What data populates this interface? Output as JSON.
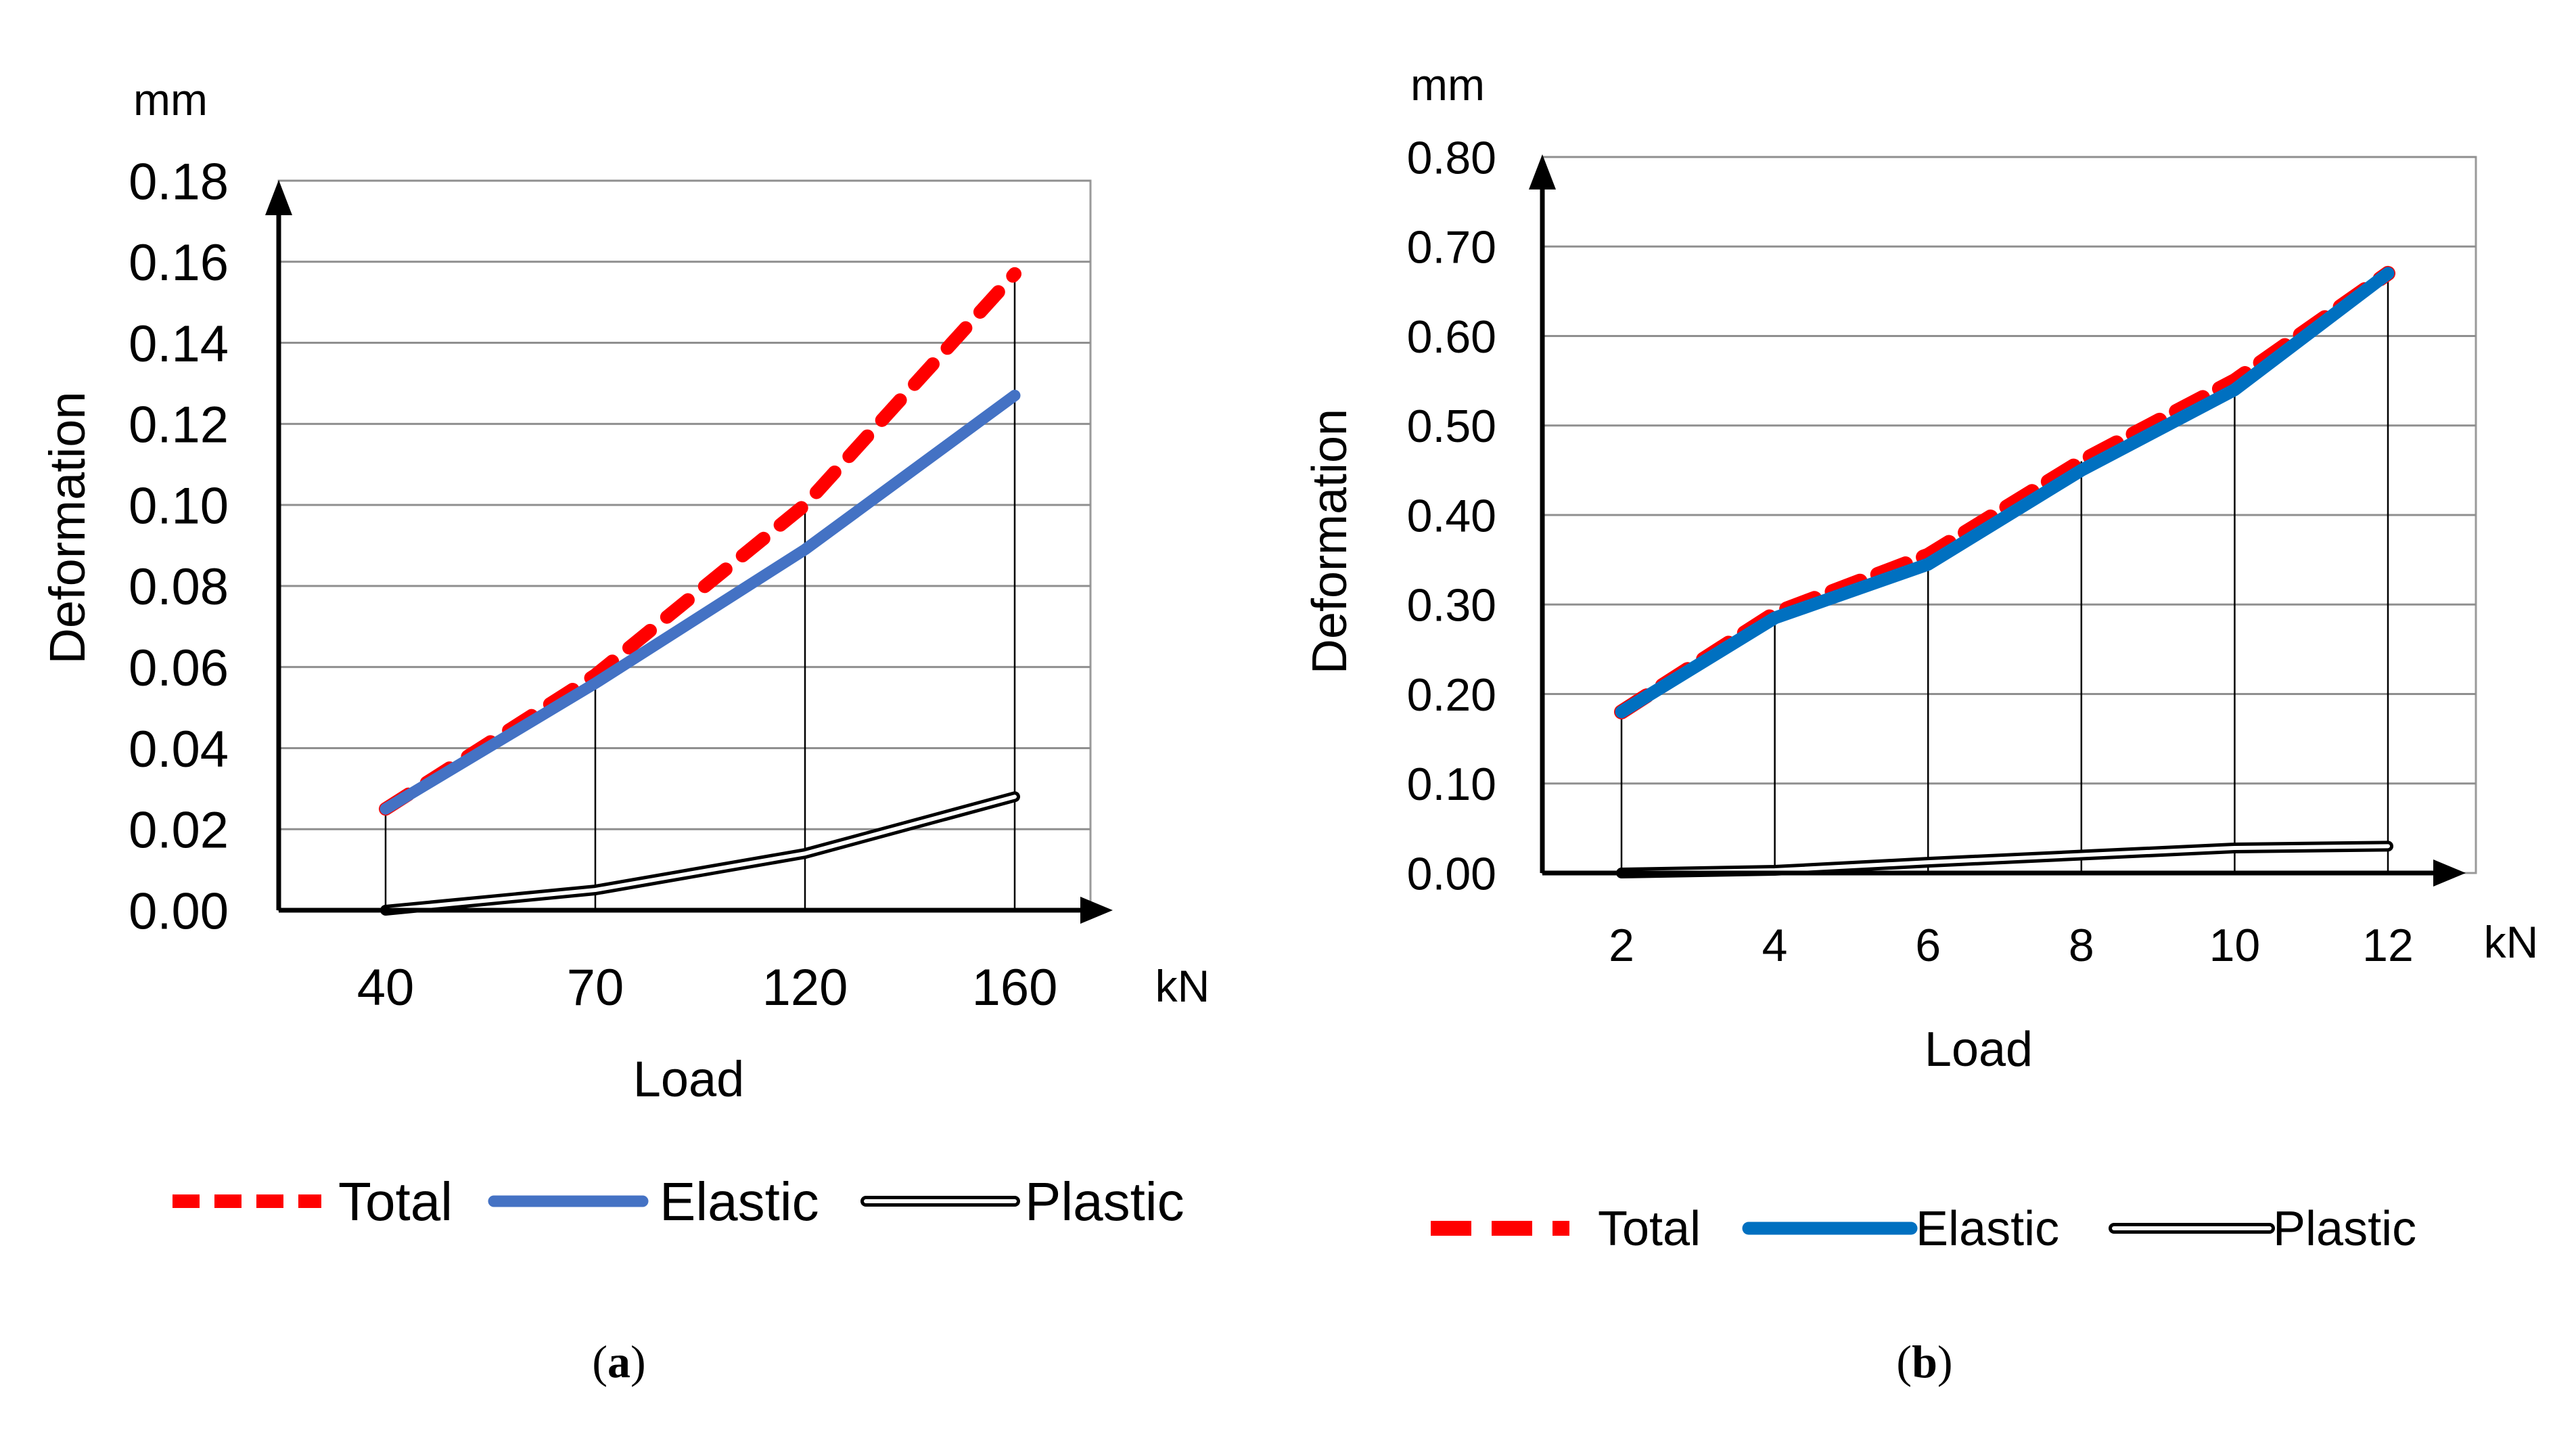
{
  "chart_data": [
    {
      "type": "line",
      "panel": "a",
      "caption_letter": "a",
      "categories": [
        "40",
        "70",
        "120",
        "160"
      ],
      "series": [
        {
          "name": "Total",
          "values": [
            0.025,
            0.058,
            0.1,
            0.157
          ],
          "color": "#ff0000",
          "style": "dashed"
        },
        {
          "name": "Elastic",
          "values": [
            0.025,
            0.056,
            0.089,
            0.127
          ],
          "color": "#4472c4",
          "style": "solid"
        },
        {
          "name": "Plastic",
          "values": [
            0.0,
            0.005,
            0.014,
            0.028
          ],
          "color": "#000000",
          "style": "double"
        }
      ],
      "xlabel": "Load",
      "ylabel": "Deformation",
      "x_unit": "kN",
      "y_unit": "mm",
      "ylim": [
        0,
        0.18
      ],
      "yticks": [
        "0.00",
        "0.02",
        "0.04",
        "0.06",
        "0.08",
        "0.10",
        "0.12",
        "0.14",
        "0.16",
        "0.18"
      ],
      "grid": true,
      "legend": "bottom"
    },
    {
      "type": "line",
      "panel": "b",
      "caption_letter": "b",
      "categories": [
        "2",
        "4",
        "6",
        "8",
        "10",
        "12"
      ],
      "series": [
        {
          "name": "Total",
          "values": [
            0.18,
            0.29,
            0.355,
            0.46,
            0.55,
            0.67
          ],
          "color": "#ff0000",
          "style": "dashed"
        },
        {
          "name": "Elastic",
          "values": [
            0.18,
            0.285,
            0.345,
            0.45,
            0.54,
            0.67
          ],
          "color": "#0070c0",
          "style": "solid"
        },
        {
          "name": "Plastic",
          "values": [
            0.0,
            0.003,
            0.012,
            0.02,
            0.028,
            0.03
          ],
          "color": "#000000",
          "style": "double"
        }
      ],
      "xlabel": "Load",
      "ylabel": "Deformation",
      "x_unit": "kN",
      "y_unit": "mm",
      "ylim": [
        0,
        0.8
      ],
      "yticks": [
        "0.00",
        "0.10",
        "0.20",
        "0.30",
        "0.40",
        "0.50",
        "0.60",
        "0.70",
        "0.80"
      ],
      "grid": true,
      "legend": "bottom"
    }
  ]
}
